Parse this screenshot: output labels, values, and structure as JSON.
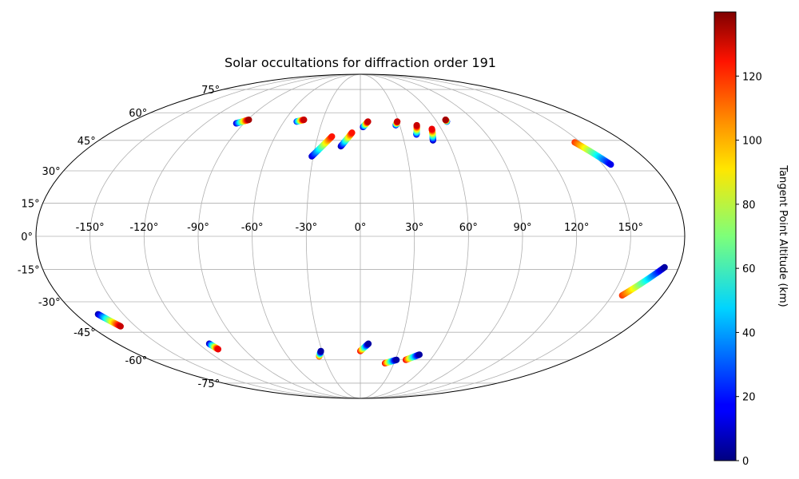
{
  "chart_data": {
    "type": "scatter",
    "title": "Solar occultations for diffraction order 191",
    "projection": "mollweide",
    "grid": true,
    "longitude_ticks": [
      "-150°",
      "-120°",
      "-90°",
      "-60°",
      "-30°",
      "0°",
      "30°",
      "60°",
      "90°",
      "120°",
      "150°"
    ],
    "latitude_ticks": [
      "75°",
      "60°",
      "45°",
      "30°",
      "15°",
      "0°",
      "-15°",
      "-30°",
      "-45°",
      "-60°",
      "-75°"
    ],
    "colorbar": {
      "label": "Tangent Point Altitude (km)",
      "colormap": "jet",
      "range": [
        0,
        140
      ],
      "ticks": [
        "0",
        "20",
        "40",
        "60",
        "80",
        "100",
        "120"
      ]
    },
    "tracks": [
      {
        "lon_start": -96,
        "lat_start": 54,
        "lon_end": -89,
        "lat_end": 56,
        "alt_start": 10,
        "alt_end": 135
      },
      {
        "lon_start": -50,
        "lat_start": 55,
        "lon_end": -45,
        "lat_end": 56,
        "alt_start": 20,
        "alt_end": 130
      },
      {
        "lon_start": -31,
        "lat_start": 37,
        "lon_end": -20,
        "lat_end": 47,
        "alt_start": 10,
        "alt_end": 120
      },
      {
        "lon_start": -13,
        "lat_start": 42,
        "lon_end": -6,
        "lat_end": 49,
        "alt_start": 5,
        "alt_end": 120
      },
      {
        "lon_start": 2,
        "lat_start": 52,
        "lon_end": 6,
        "lat_end": 55,
        "alt_start": 10,
        "alt_end": 130
      },
      {
        "lon_start": 27,
        "lat_start": 53,
        "lon_end": 29,
        "lat_end": 55,
        "alt_start": 10,
        "alt_end": 130
      },
      {
        "lon_start": 40,
        "lat_start": 48,
        "lon_end": 43,
        "lat_end": 53,
        "alt_start": 15,
        "alt_end": 130
      },
      {
        "lon_start": 50,
        "lat_start": 45,
        "lon_end": 53,
        "lat_end": 51,
        "alt_start": 5,
        "alt_end": 125
      },
      {
        "lon_start": 68,
        "lat_start": 55,
        "lon_end": 68,
        "lat_end": 56,
        "alt_start": 20,
        "alt_end": 135
      },
      {
        "lon_start": 146,
        "lat_start": 44,
        "lon_end": 155,
        "lat_end": 33,
        "alt_start": 115,
        "alt_end": 15
      },
      {
        "lon_start": 156,
        "lat_start": -27,
        "lon_end": 172,
        "lat_end": -14,
        "alt_start": 115,
        "alt_end": 5
      },
      {
        "lon_start": -166,
        "lat_start": -36,
        "lon_end": -160,
        "lat_end": -42,
        "alt_start": 5,
        "alt_end": 130
      },
      {
        "lon_start": -112,
        "lat_start": -51,
        "lon_end": -110,
        "lat_end": -54,
        "alt_start": 5,
        "alt_end": 125
      },
      {
        "lon_start": -34,
        "lat_start": -58,
        "lon_end": -31,
        "lat_end": -55,
        "alt_start": 115,
        "alt_end": 5
      },
      {
        "lon_start": 0,
        "lat_start": -55,
        "lon_end": 6,
        "lat_end": -51,
        "alt_start": 125,
        "alt_end": 5
      },
      {
        "lon_start": 22,
        "lat_start": -62,
        "lon_end": 31,
        "lat_end": -60,
        "alt_start": 125,
        "alt_end": 5
      },
      {
        "lon_start": 39,
        "lat_start": -60,
        "lon_end": 48,
        "lat_end": -57,
        "alt_start": 125,
        "alt_end": 5
      }
    ]
  }
}
